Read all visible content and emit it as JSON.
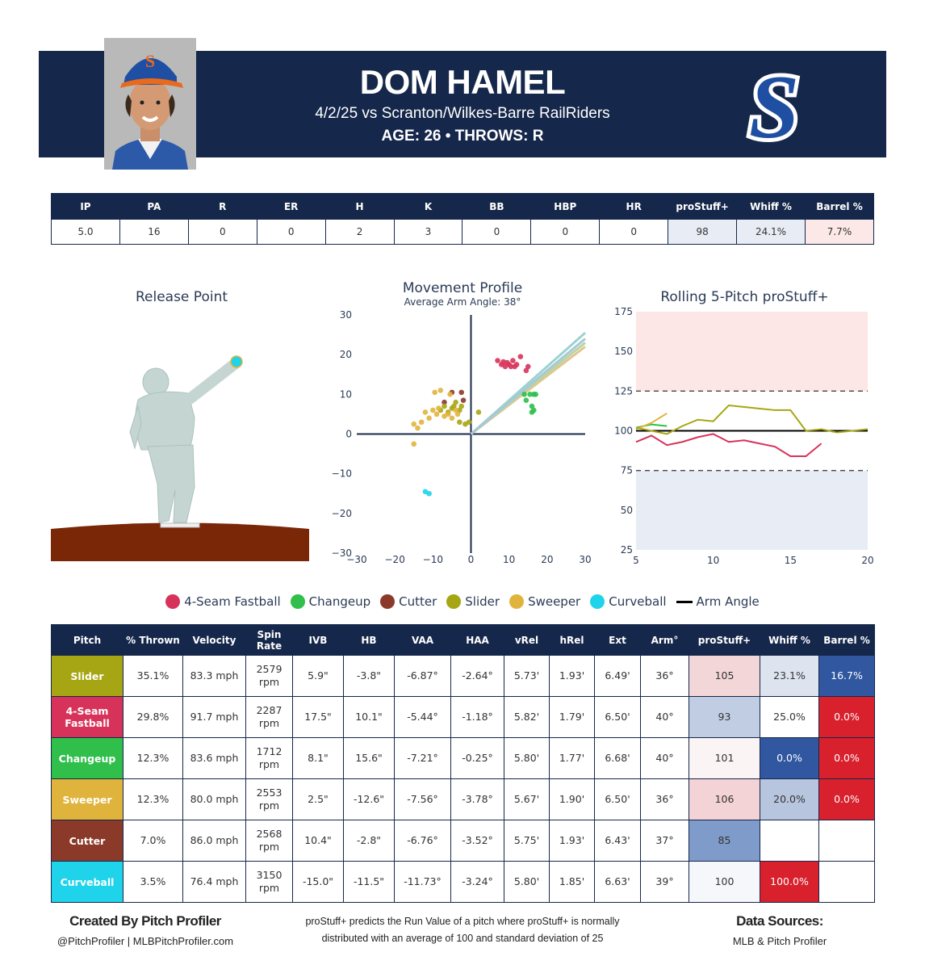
{
  "header": {
    "name": "DOM HAMEL",
    "game": "4/2/25 vs Scranton/Wilkes-Barre RailRiders",
    "age_throws": "AGE: 26 • THROWS: R",
    "logo_letter": "S",
    "cap_letter": "S",
    "colors": {
      "navy": "#15274a",
      "team_blue": "#1f4fa3",
      "team_orange": "#e86a1d"
    }
  },
  "summary": {
    "headers": [
      "IP",
      "PA",
      "R",
      "ER",
      "H",
      "K",
      "BB",
      "HBP",
      "HR",
      "proStuff+",
      "Whiff %",
      "Barrel %"
    ],
    "values": [
      "5.0",
      "16",
      "0",
      "0",
      "2",
      "3",
      "0",
      "0",
      "0",
      "98",
      "24.1%",
      "7.7%"
    ],
    "highlight_colors": [
      "",
      "",
      "",
      "",
      "",
      "",
      "",
      "",
      "",
      "#e8edf5",
      "#e8edf5",
      "#fde8e8"
    ]
  },
  "legend": [
    {
      "label": "4-Seam Fastball",
      "color": "#d7335a",
      "icon": "dot"
    },
    {
      "label": "Changeup",
      "color": "#2fbf4a",
      "icon": "dot"
    },
    {
      "label": "Cutter",
      "color": "#8b3a2a",
      "icon": "dot"
    },
    {
      "label": "Slider",
      "color": "#a6a614",
      "icon": "dot"
    },
    {
      "label": "Sweeper",
      "color": "#e0b43c",
      "icon": "dot"
    },
    {
      "label": "Curveball",
      "color": "#1fd3ea",
      "icon": "dot"
    },
    {
      "label": "Arm Angle",
      "color": "#000000",
      "icon": "line"
    }
  ],
  "chart_data": [
    {
      "type": "scatter",
      "title": "Release Point",
      "description_visible": "pitcher silhouette on mound with arm slot",
      "series": []
    },
    {
      "type": "scatter",
      "title": "Movement Profile",
      "subtitle": "Average Arm Angle: 38°",
      "xlim": [
        -30,
        30
      ],
      "ylim": [
        -30,
        30
      ],
      "x_ticks": [
        "−30",
        "−20",
        "−10",
        "0",
        "10",
        "20",
        "30"
      ],
      "y_ticks": [
        "30",
        "20",
        "10",
        "0",
        "−10",
        "−20",
        "−30"
      ],
      "series": [
        {
          "name": "4-Seam Fastball",
          "color": "#d7335a",
          "points": [
            [
              7,
              18.5
            ],
            [
              8,
              17.5
            ],
            [
              8.5,
              18.2
            ],
            [
              9,
              17
            ],
            [
              9.5,
              18
            ],
            [
              10,
              17.5
            ],
            [
              10.5,
              17
            ],
            [
              11,
              18.5
            ],
            [
              11.5,
              17
            ],
            [
              12,
              17.5
            ],
            [
              13,
              19.5
            ],
            [
              14.5,
              16
            ],
            [
              15,
              17
            ]
          ]
        },
        {
          "name": "Changeup",
          "color": "#2fbf4a",
          "points": [
            [
              14,
              10
            ],
            [
              14.5,
              8.5
            ],
            [
              15.5,
              10
            ],
            [
              16,
              7
            ],
            [
              16.5,
              10
            ],
            [
              16,
              5.5
            ],
            [
              16.5,
              6
            ],
            [
              17,
              10
            ]
          ]
        },
        {
          "name": "Cutter",
          "color": "#8b3a2a",
          "points": [
            [
              -7,
              8
            ],
            [
              -5,
              10.5
            ],
            [
              -2.5,
              10.5
            ],
            [
              -2,
              8.5
            ]
          ]
        },
        {
          "name": "Slider",
          "color": "#a6a614",
          "points": [
            [
              -8,
              6
            ],
            [
              -7,
              7
            ],
            [
              -6,
              5.5
            ],
            [
              -5,
              6.5
            ],
            [
              -4.5,
              7
            ],
            [
              -4,
              8
            ],
            [
              -3,
              6
            ],
            [
              -2.5,
              7
            ],
            [
              -3,
              3
            ],
            [
              -1.5,
              2.5
            ],
            [
              -0.5,
              3
            ],
            [
              2,
              5.5
            ]
          ]
        },
        {
          "name": "Sweeper",
          "color": "#e0b43c",
          "points": [
            [
              -15,
              2.5
            ],
            [
              -14,
              1.5
            ],
            [
              -13,
              3
            ],
            [
              -12,
              5.5
            ],
            [
              -11,
              4
            ],
            [
              -10,
              6
            ],
            [
              -9.5,
              10.5
            ],
            [
              -8,
              11
            ],
            [
              -8.5,
              6.5
            ],
            [
              -9,
              5
            ],
            [
              -7,
              4.5
            ],
            [
              -6,
              5
            ],
            [
              -5.5,
              10
            ],
            [
              -5,
              4
            ],
            [
              -4,
              6
            ],
            [
              -3.5,
              5
            ],
            [
              -15,
              -2.5
            ]
          ]
        },
        {
          "name": "Curveball",
          "color": "#1fd3ea",
          "points": [
            [
              -12,
              -14.5
            ],
            [
              -11,
              -15
            ]
          ]
        }
      ],
      "arm_angle_lines": [
        {
          "color": "#9bd3cf",
          "to": [
            30,
            25.5
          ]
        },
        {
          "color": "#e0c690",
          "to": [
            30,
            22
          ]
        },
        {
          "color": "#b9d5a0",
          "to": [
            30,
            23
          ]
        },
        {
          "color": "#a8c7d8",
          "to": [
            30,
            24
          ]
        }
      ]
    },
    {
      "type": "line",
      "title": "Rolling 5-Pitch proStuff+",
      "xlim": [
        5,
        20
      ],
      "ylim": [
        25,
        175
      ],
      "x_ticks": [
        "5",
        "10",
        "15",
        "20"
      ],
      "y_ticks": [
        "175",
        "150",
        "125",
        "100",
        "75",
        "50",
        "25"
      ],
      "reference_lines": [
        125,
        75
      ],
      "baseline": 100,
      "shaded_bands": [
        {
          "from": 125,
          "to": 175,
          "color": "#fde6e6"
        },
        {
          "from": 25,
          "to": 75,
          "color": "#e8edf5"
        }
      ],
      "series": [
        {
          "name": "4-Seam Fastball",
          "color": "#d7335a",
          "x": [
            5,
            6,
            7,
            8,
            9,
            10,
            11,
            12,
            13,
            14,
            15,
            16,
            17
          ],
          "y": [
            93,
            97,
            91,
            93,
            96,
            98,
            93,
            94,
            92,
            90,
            84,
            84,
            92
          ]
        },
        {
          "name": "Changeup",
          "color": "#2fbf4a",
          "x": [
            5,
            6,
            7
          ],
          "y": [
            102,
            104,
            103
          ]
        },
        {
          "name": "Sweeper",
          "color": "#e0b43c",
          "x": [
            5,
            6,
            7
          ],
          "y": [
            101,
            105,
            111
          ]
        },
        {
          "name": "Slider",
          "color": "#a6a614",
          "x": [
            5,
            6,
            7,
            8,
            9,
            10,
            11,
            12,
            13,
            14,
            15,
            16,
            17,
            18,
            19,
            20
          ],
          "y": [
            102,
            100,
            98,
            103,
            107,
            106,
            116,
            115,
            114,
            113,
            113,
            100,
            101,
            99,
            100,
            101
          ]
        }
      ]
    }
  ],
  "pitch_table": {
    "headers": [
      "Pitch",
      "% Thrown",
      "Velocity",
      "Spin Rate",
      "IVB",
      "HB",
      "VAA",
      "HAA",
      "vRel",
      "hRel",
      "Ext",
      "Arm°",
      "proStuff+",
      "Whiff %",
      "Barrel %"
    ],
    "rows": [
      {
        "pitch": "Slider",
        "color": "#a6a614",
        "cells": [
          "35.1%",
          "83.3 mph",
          "2579 rpm",
          "5.9\"",
          "-3.8\"",
          "-6.87°",
          "-2.64°",
          "5.73'",
          "1.93'",
          "6.49'",
          "36°",
          "105",
          "23.1%",
          "16.7%"
        ],
        "stuff_bg": "#f3d6d8",
        "whiff_bg": "#dde3ef",
        "barrel_bg": "#3057a0",
        "whiff_dark": false,
        "barrel_dark": true
      },
      {
        "pitch": "4-Seam Fastball",
        "color": "#d7335a",
        "cells": [
          "29.8%",
          "91.7 mph",
          "2287 rpm",
          "17.5\"",
          "10.1\"",
          "-5.44°",
          "-1.18°",
          "5.82'",
          "1.79'",
          "6.50'",
          "40°",
          "93",
          "25.0%",
          "0.0%"
        ],
        "stuff_bg": "#c1cde3",
        "whiff_bg": "#ffffff",
        "barrel_bg": "#d8212d",
        "whiff_dark": false,
        "barrel_dark": true
      },
      {
        "pitch": "Changeup",
        "color": "#2fbf4a",
        "cells": [
          "12.3%",
          "83.6 mph",
          "1712 rpm",
          "8.1\"",
          "15.6\"",
          "-7.21°",
          "-0.25°",
          "5.80'",
          "1.77'",
          "6.68'",
          "40°",
          "101",
          "0.0%",
          "0.0%"
        ],
        "stuff_bg": "#fbf4f4",
        "whiff_bg": "#3057a0",
        "barrel_bg": "#d8212d",
        "whiff_dark": true,
        "barrel_dark": true
      },
      {
        "pitch": "Sweeper",
        "color": "#e0b43c",
        "cells": [
          "12.3%",
          "80.0 mph",
          "2553 rpm",
          "2.5\"",
          "-12.6\"",
          "-7.56°",
          "-3.78°",
          "5.67'",
          "1.90'",
          "6.50'",
          "36°",
          "106",
          "20.0%",
          "0.0%"
        ],
        "stuff_bg": "#f3d3d5",
        "whiff_bg": "#b8c5de",
        "barrel_bg": "#d8212d",
        "whiff_dark": false,
        "barrel_dark": true
      },
      {
        "pitch": "Cutter",
        "color": "#8b3a2a",
        "cells": [
          "7.0%",
          "86.0 mph",
          "2568 rpm",
          "10.4\"",
          "-2.8\"",
          "-6.76°",
          "-3.52°",
          "5.75'",
          "1.93'",
          "6.43'",
          "37°",
          "85",
          "",
          ""
        ],
        "stuff_bg": "#7f9bc9",
        "whiff_bg": "#ffffff",
        "barrel_bg": "#ffffff",
        "whiff_dark": false,
        "barrel_dark": false
      },
      {
        "pitch": "Curveball",
        "color": "#1fd3ea",
        "cells": [
          "3.5%",
          "76.4 mph",
          "3150 rpm",
          "-15.0\"",
          "-11.5\"",
          "-11.73°",
          "-3.24°",
          "5.80'",
          "1.85'",
          "6.63'",
          "39°",
          "100",
          "100.0%",
          ""
        ],
        "stuff_bg": "#f6f7fa",
        "whiff_bg": "#d8212d",
        "barrel_bg": "#ffffff",
        "whiff_dark": true,
        "barrel_dark": false
      }
    ]
  },
  "footer": {
    "created_by": "Created By Pitch Profiler",
    "handles": "@PitchProfiler | MLBPitchProfiler.com",
    "note_line1": "proStuff+ predicts the Run Value of a pitch where proStuff+ is normally",
    "note_line2": "distributed with an average of 100 and standard deviation of 25",
    "sources_title": "Data Sources:",
    "sources": "MLB & Pitch Profiler"
  }
}
